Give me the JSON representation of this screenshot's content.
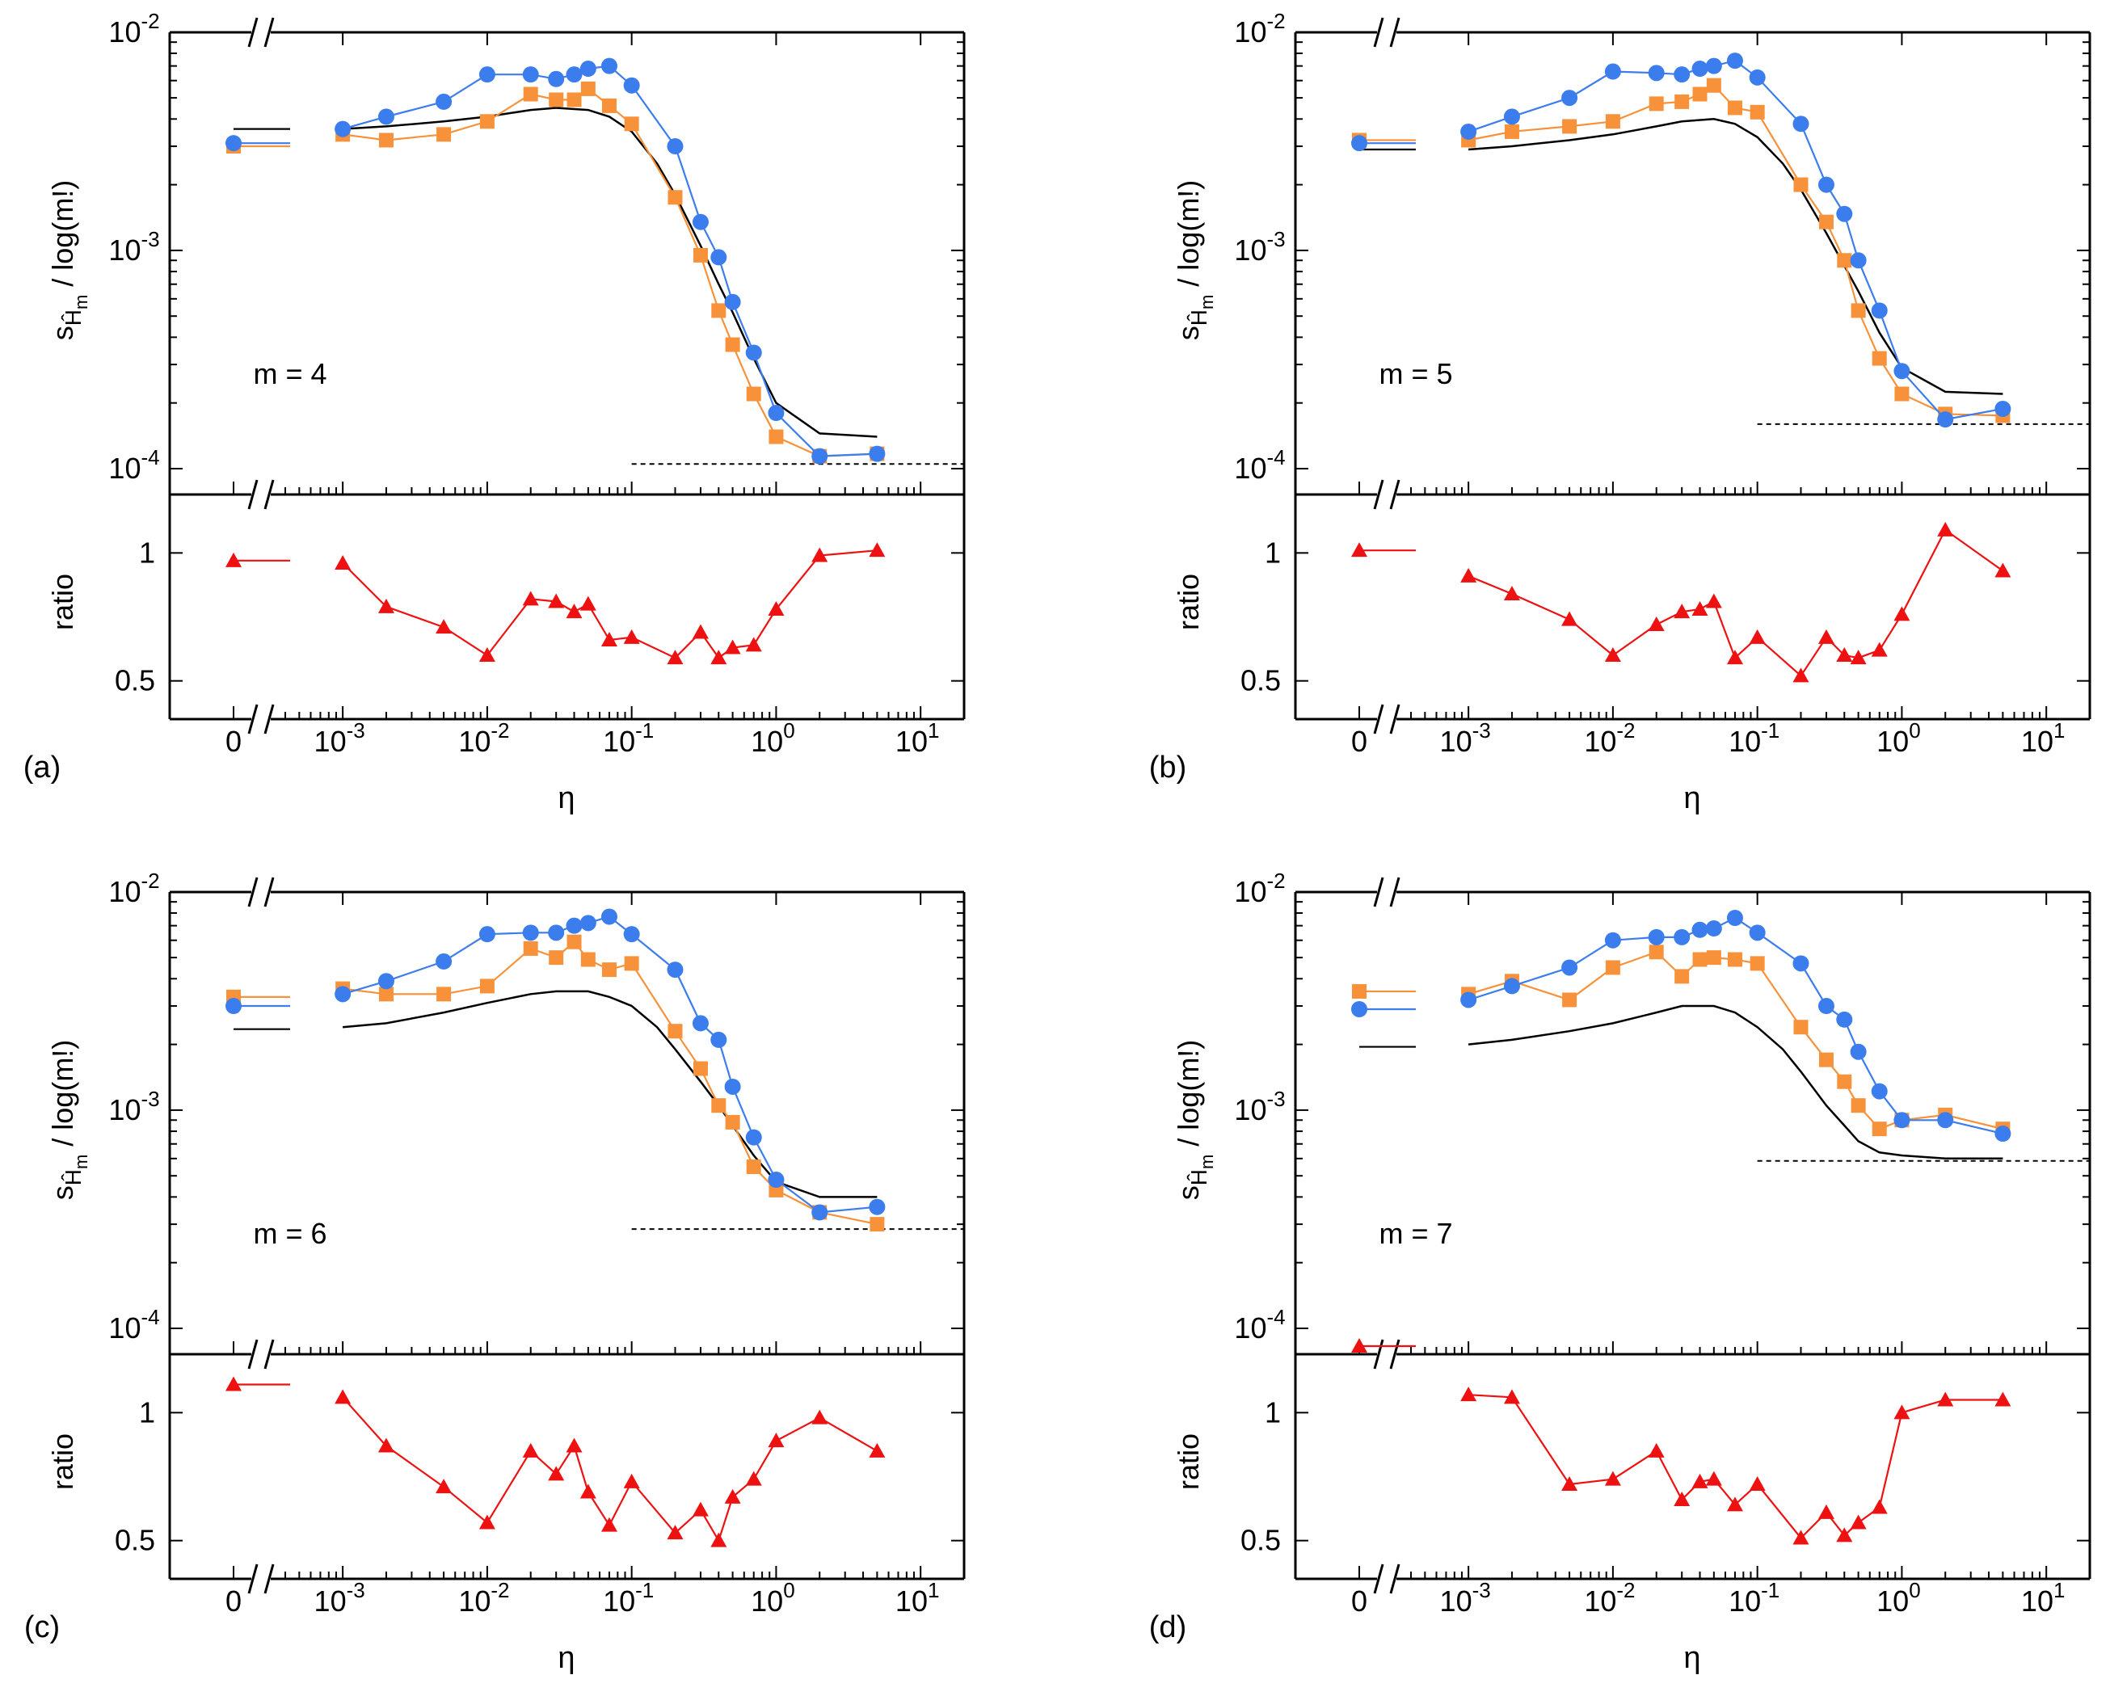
{
  "figure": {
    "x_axis_label": "η",
    "upper_y_label": "s",
    "upper_y_label_sub": "Ĥ",
    "upper_y_label_subsub": "m",
    "upper_y_label_rest": " / log(m!)",
    "ratio_label": "ratio",
    "x_ticks": [
      {
        "label": "0",
        "base": "",
        "exp": "",
        "at_zero": true
      },
      {
        "label": "",
        "base": "10",
        "exp": "-3",
        "value": 0.001
      },
      {
        "label": "",
        "base": "10",
        "exp": "-2",
        "value": 0.01
      },
      {
        "label": "",
        "base": "10",
        "exp": "-1",
        "value": 0.1
      },
      {
        "label": "",
        "base": "10",
        "exp": "0",
        "value": 1
      },
      {
        "label": "",
        "base": "10",
        "exp": "1",
        "value": 10
      }
    ],
    "y_ticks": [
      {
        "base": "10",
        "exp": "-2",
        "value": 0.01
      },
      {
        "base": "10",
        "exp": "-3",
        "value": 0.001
      },
      {
        "base": "10",
        "exp": "-4",
        "value": 0.0001
      }
    ],
    "ratio_ticks": [
      {
        "label": "1",
        "value": 1
      },
      {
        "label": "0.5",
        "value": 0.5
      }
    ],
    "colors": {
      "blue": "#3b7ded",
      "orange": "#f7923a",
      "black": "#000000",
      "red": "#ee1111"
    }
  },
  "chart_data": [
    {
      "panel": "(a)",
      "annotation": "m = 4",
      "type": "line",
      "x": [
        0.001,
        0.002,
        0.005,
        0.01,
        0.02,
        0.03,
        0.04,
        0.05,
        0.07,
        0.1,
        0.2,
        0.3,
        0.4,
        0.5,
        0.7,
        1,
        2,
        5
      ],
      "xlim": [
        0.0004,
        20
      ],
      "ylim": [
        0.0001,
        0.01
      ],
      "ratio_lim": [
        0.42,
        1.2
      ],
      "series": [
        {
          "name": "blue circles",
          "marker": "circle",
          "color": "#3b7ded",
          "zero": 0.0031,
          "values": [
            0.0036,
            0.0041,
            0.0048,
            0.0064,
            0.0064,
            0.0061,
            0.0064,
            0.0068,
            0.007,
            0.0057,
            0.003,
            0.00135,
            0.00093,
            0.00058,
            0.00034,
            0.00018,
            0.000114,
            0.000117
          ]
        },
        {
          "name": "orange squares",
          "marker": "square",
          "color": "#f7923a",
          "zero": 0.003,
          "values": [
            0.0034,
            0.0032,
            0.0034,
            0.0039,
            0.0052,
            0.0049,
            0.0049,
            0.0055,
            0.0046,
            0.0038,
            0.00175,
            0.00095,
            0.00053,
            0.00037,
            0.00022,
            0.00014,
            0.000114,
            0.000117
          ]
        },
        {
          "name": "black line",
          "marker": "none",
          "color": "#000000",
          "zero": 0.0036,
          "x": [
            0.001,
            0.002,
            0.005,
            0.01,
            0.02,
            0.03,
            0.05,
            0.07,
            0.1,
            0.15,
            0.2,
            0.3,
            0.4,
            0.5,
            0.7,
            1,
            2,
            5
          ],
          "values": [
            0.0036,
            0.0037,
            0.0039,
            0.0041,
            0.0044,
            0.0045,
            0.0044,
            0.0041,
            0.0035,
            0.0025,
            0.0018,
            0.00105,
            0.0007,
            0.00052,
            0.00032,
            0.0002,
            0.000145,
            0.00014
          ]
        }
      ],
      "reference_line": {
        "x_from": 0.1,
        "x_to": 20,
        "value": 0.000105
      },
      "ratio": {
        "zero": 0.97,
        "values": [
          0.96,
          0.79,
          0.71,
          0.6,
          0.82,
          0.81,
          0.77,
          0.8,
          0.66,
          0.67,
          0.59,
          0.69,
          0.59,
          0.63,
          0.64,
          0.78,
          0.99,
          1.01
        ]
      }
    },
    {
      "panel": "(b)",
      "annotation": "m = 5",
      "type": "line",
      "x": [
        0.001,
        0.002,
        0.005,
        0.01,
        0.02,
        0.03,
        0.04,
        0.05,
        0.07,
        0.1,
        0.2,
        0.3,
        0.4,
        0.5,
        0.7,
        1,
        2,
        5
      ],
      "xlim": [
        0.0004,
        20
      ],
      "ylim": [
        0.0001,
        0.01
      ],
      "ratio_lim": [
        0.42,
        1.2
      ],
      "series": [
        {
          "name": "blue circles",
          "marker": "circle",
          "color": "#3b7ded",
          "zero": 0.0031,
          "values": [
            0.0035,
            0.0041,
            0.005,
            0.0066,
            0.0065,
            0.0064,
            0.0068,
            0.007,
            0.0074,
            0.0062,
            0.0038,
            0.002,
            0.00147,
            0.0009,
            0.00053,
            0.00028,
            0.000168,
            0.000188
          ]
        },
        {
          "name": "orange squares",
          "marker": "square",
          "color": "#f7923a",
          "zero": 0.0032,
          "values": [
            0.0032,
            0.0035,
            0.0037,
            0.0039,
            0.0047,
            0.0048,
            0.0052,
            0.0057,
            0.0045,
            0.0043,
            0.002,
            0.00135,
            0.0009,
            0.00053,
            0.00032,
            0.00022,
            0.000178,
            0.000175
          ]
        },
        {
          "name": "black line",
          "marker": "none",
          "color": "#000000",
          "zero": 0.0029,
          "x": [
            0.001,
            0.002,
            0.005,
            0.01,
            0.02,
            0.03,
            0.05,
            0.07,
            0.1,
            0.15,
            0.2,
            0.3,
            0.4,
            0.5,
            0.7,
            1,
            2,
            5
          ],
          "values": [
            0.0029,
            0.003,
            0.0032,
            0.0034,
            0.0037,
            0.0039,
            0.004,
            0.0038,
            0.0033,
            0.0025,
            0.0019,
            0.0012,
            0.00085,
            0.00065,
            0.00042,
            0.00029,
            0.000225,
            0.00022
          ]
        }
      ],
      "reference_line": {
        "x_from": 0.1,
        "x_to": 20,
        "value": 0.00016
      },
      "ratio": {
        "zero": 1.01,
        "values": [
          0.91,
          0.84,
          0.74,
          0.6,
          0.72,
          0.77,
          0.78,
          0.81,
          0.59,
          0.67,
          0.52,
          0.67,
          0.6,
          0.59,
          0.62,
          0.76,
          1.09,
          0.93
        ]
      }
    },
    {
      "panel": "(c)",
      "annotation": "m = 6",
      "type": "line",
      "x": [
        0.001,
        0.002,
        0.005,
        0.01,
        0.02,
        0.03,
        0.04,
        0.05,
        0.07,
        0.1,
        0.2,
        0.3,
        0.4,
        0.5,
        0.7,
        1,
        2,
        5
      ],
      "xlim": [
        0.0004,
        20
      ],
      "ylim": [
        0.0001,
        0.01
      ],
      "ratio_lim": [
        0.42,
        1.2
      ],
      "series": [
        {
          "name": "blue circles",
          "marker": "circle",
          "color": "#3b7ded",
          "zero": 0.003,
          "values": [
            0.0034,
            0.0039,
            0.0048,
            0.0064,
            0.0065,
            0.0065,
            0.007,
            0.0072,
            0.0077,
            0.0064,
            0.0044,
            0.0025,
            0.0021,
            0.00128,
            0.00075,
            0.00048,
            0.00034,
            0.00036
          ]
        },
        {
          "name": "orange squares",
          "marker": "square",
          "color": "#f7923a",
          "zero": 0.0033,
          "values": [
            0.0036,
            0.0034,
            0.0034,
            0.0037,
            0.0055,
            0.005,
            0.0059,
            0.0049,
            0.0044,
            0.0047,
            0.0023,
            0.00155,
            0.00105,
            0.00088,
            0.00055,
            0.00043,
            0.00034,
            0.0003
          ]
        },
        {
          "name": "black line",
          "marker": "none",
          "color": "#000000",
          "zero": 0.00235,
          "x": [
            0.001,
            0.002,
            0.005,
            0.01,
            0.02,
            0.03,
            0.05,
            0.07,
            0.1,
            0.15,
            0.2,
            0.3,
            0.4,
            0.5,
            0.7,
            1,
            2,
            5
          ],
          "values": [
            0.0024,
            0.0025,
            0.0028,
            0.0031,
            0.0034,
            0.0035,
            0.0035,
            0.0033,
            0.003,
            0.0024,
            0.0019,
            0.00135,
            0.00105,
            0.00085,
            0.00062,
            0.00047,
            0.0004,
            0.0004
          ]
        }
      ],
      "reference_line": {
        "x_from": 0.1,
        "x_to": 20,
        "value": 0.000285
      },
      "ratio": {
        "zero": 1.11,
        "values": [
          1.06,
          0.87,
          0.71,
          0.57,
          0.85,
          0.76,
          0.87,
          0.69,
          0.56,
          0.73,
          0.53,
          0.62,
          0.5,
          0.67,
          0.74,
          0.89,
          0.98,
          0.85
        ]
      }
    },
    {
      "panel": "(d)",
      "annotation": "m = 7",
      "type": "line",
      "x": [
        0.001,
        0.002,
        0.005,
        0.01,
        0.02,
        0.03,
        0.04,
        0.05,
        0.07,
        0.1,
        0.2,
        0.3,
        0.4,
        0.5,
        0.7,
        1,
        2,
        5
      ],
      "xlim": [
        0.0004,
        20
      ],
      "ylim": [
        0.0001,
        0.01
      ],
      "ratio_lim": [
        0.42,
        1.2
      ],
      "series": [
        {
          "name": "blue circles",
          "marker": "circle",
          "color": "#3b7ded",
          "zero": 0.0029,
          "values": [
            0.0032,
            0.0037,
            0.0045,
            0.006,
            0.0062,
            0.0062,
            0.0067,
            0.0068,
            0.0076,
            0.0065,
            0.0047,
            0.003,
            0.0026,
            0.00185,
            0.00122,
            0.0009,
            0.0009,
            0.00078
          ]
        },
        {
          "name": "orange squares",
          "marker": "square",
          "color": "#f7923a",
          "zero": 0.0035,
          "values": [
            0.0034,
            0.0039,
            0.0032,
            0.0045,
            0.0053,
            0.0041,
            0.0049,
            0.005,
            0.0049,
            0.0047,
            0.0024,
            0.0017,
            0.00135,
            0.00105,
            0.00082,
            0.0009,
            0.00095,
            0.00082
          ]
        },
        {
          "name": "black line",
          "marker": "none",
          "color": "#000000",
          "zero": 0.00195,
          "x": [
            0.001,
            0.002,
            0.005,
            0.01,
            0.02,
            0.03,
            0.05,
            0.07,
            0.1,
            0.15,
            0.2,
            0.3,
            0.4,
            0.5,
            0.7,
            1,
            2,
            5
          ],
          "values": [
            0.002,
            0.0021,
            0.0023,
            0.0025,
            0.0028,
            0.003,
            0.003,
            0.0028,
            0.0024,
            0.0019,
            0.0015,
            0.00105,
            0.00085,
            0.00072,
            0.00064,
            0.00062,
            0.0006,
            0.0006
          ]
        }
      ],
      "reference_line": {
        "x_from": 0.1,
        "x_to": 20,
        "value": 0.000585
      },
      "ratio": {
        "zero": 1.26,
        "values": [
          1.07,
          1.06,
          0.72,
          0.74,
          0.85,
          0.66,
          0.73,
          0.74,
          0.64,
          0.72,
          0.51,
          0.61,
          0.52,
          0.57,
          0.63,
          1.0,
          1.05,
          1.05
        ]
      }
    }
  ]
}
